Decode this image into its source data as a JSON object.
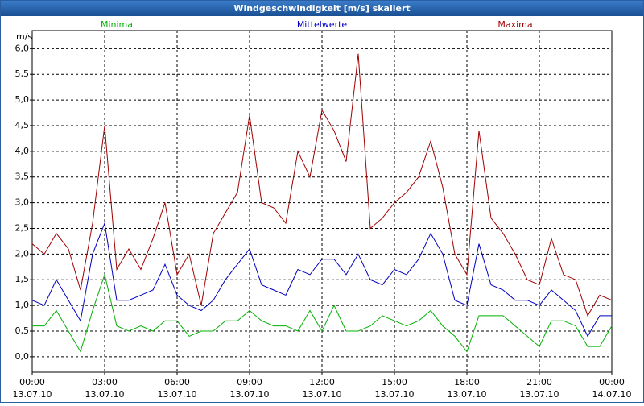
{
  "chart_data": {
    "type": "line",
    "title": "Windgeschwindigkeit [m/s] skaliert",
    "y_label": "m/s",
    "x": [
      0,
      0.5,
      1,
      1.5,
      2,
      2.5,
      3,
      3.5,
      4,
      4.5,
      5,
      5.5,
      6,
      6.5,
      7,
      7.5,
      8,
      8.5,
      9,
      9.5,
      10,
      10.5,
      11,
      11.5,
      12,
      12.5,
      13,
      13.5,
      14,
      14.5,
      15,
      15.5,
      16,
      16.5,
      17,
      17.5,
      18,
      18.5,
      19,
      19.5,
      20,
      20.5,
      21,
      21.5,
      22,
      22.5,
      23,
      23.5,
      24
    ],
    "series": [
      {
        "name": "Minima",
        "color": "#00b000",
        "values": [
          0.6,
          0.6,
          0.9,
          0.5,
          0.1,
          0.9,
          1.6,
          0.6,
          0.5,
          0.6,
          0.5,
          0.7,
          0.7,
          0.4,
          0.5,
          0.5,
          0.7,
          0.7,
          0.9,
          0.7,
          0.6,
          0.6,
          0.5,
          0.9,
          0.5,
          1.0,
          0.5,
          0.5,
          0.6,
          0.8,
          0.7,
          0.6,
          0.7,
          0.9,
          0.6,
          0.4,
          0.1,
          0.8,
          0.8,
          0.8,
          0.6,
          0.4,
          0.2,
          0.7,
          0.7,
          0.6,
          0.2,
          0.2,
          0.6
        ]
      },
      {
        "name": "Mittelwerte",
        "color": "#0000c0",
        "values": [
          1.1,
          1.0,
          1.5,
          1.1,
          0.7,
          2.0,
          2.6,
          1.1,
          1.1,
          1.2,
          1.3,
          1.8,
          1.2,
          1.0,
          0.9,
          1.1,
          1.5,
          1.8,
          2.1,
          1.4,
          1.3,
          1.2,
          1.7,
          1.6,
          1.9,
          1.9,
          1.6,
          2.0,
          1.5,
          1.4,
          1.7,
          1.6,
          1.9,
          2.4,
          2.0,
          1.1,
          1.0,
          2.2,
          1.4,
          1.3,
          1.1,
          1.1,
          1.0,
          1.3,
          1.1,
          0.9,
          0.4,
          0.8,
          0.8
        ]
      },
      {
        "name": "Maxima",
        "color": "#a00000",
        "values": [
          2.2,
          2.0,
          2.4,
          2.1,
          1.3,
          2.6,
          4.5,
          1.7,
          2.1,
          1.7,
          2.3,
          3.0,
          1.6,
          2.0,
          1.0,
          2.4,
          2.8,
          3.2,
          4.7,
          3.0,
          2.9,
          2.6,
          4.0,
          3.5,
          4.8,
          4.4,
          3.8,
          5.9,
          2.5,
          2.7,
          3.0,
          3.2,
          3.5,
          4.2,
          3.3,
          2.0,
          1.6,
          4.4,
          2.7,
          2.4,
          2.0,
          1.5,
          1.4,
          2.3,
          1.6,
          1.5,
          0.8,
          1.2,
          1.1
        ]
      }
    ],
    "xlim": [
      0,
      24
    ],
    "xticks": [
      {
        "value": 0,
        "label": "00:00"
      },
      {
        "value": 3,
        "label": "03:00"
      },
      {
        "value": 6,
        "label": "06:00"
      },
      {
        "value": 9,
        "label": "09:00"
      },
      {
        "value": 12,
        "label": "12:00"
      },
      {
        "value": 15,
        "label": "15:00"
      },
      {
        "value": 18,
        "label": "18:00"
      },
      {
        "value": 21,
        "label": "21:00"
      },
      {
        "value": 24,
        "label": "00:00"
      }
    ],
    "xtick_dates": [
      "13.07.10",
      "13.07.10",
      "13.07.10",
      "13.07.10",
      "13.07.10",
      "13.07.10",
      "13.07.10",
      "13.07.10",
      "14.07.10"
    ],
    "ylim": [
      -0.3,
      6.35
    ],
    "yticks": [
      {
        "value": 0,
        "label": "0,0"
      },
      {
        "value": 0.5,
        "label": "0,5"
      },
      {
        "value": 1,
        "label": "1,0"
      },
      {
        "value": 1.5,
        "label": "1,5"
      },
      {
        "value": 2,
        "label": "2,0"
      },
      {
        "value": 2.5,
        "label": "2,5"
      },
      {
        "value": 3,
        "label": "3,0"
      },
      {
        "value": 3.5,
        "label": "3,5"
      },
      {
        "value": 4,
        "label": "4,0"
      },
      {
        "value": 4.5,
        "label": "4,5"
      },
      {
        "value": 5,
        "label": "5,0"
      },
      {
        "value": 5.5,
        "label": "5,5"
      },
      {
        "value": 6,
        "label": "6,0"
      }
    ],
    "grid": true
  }
}
